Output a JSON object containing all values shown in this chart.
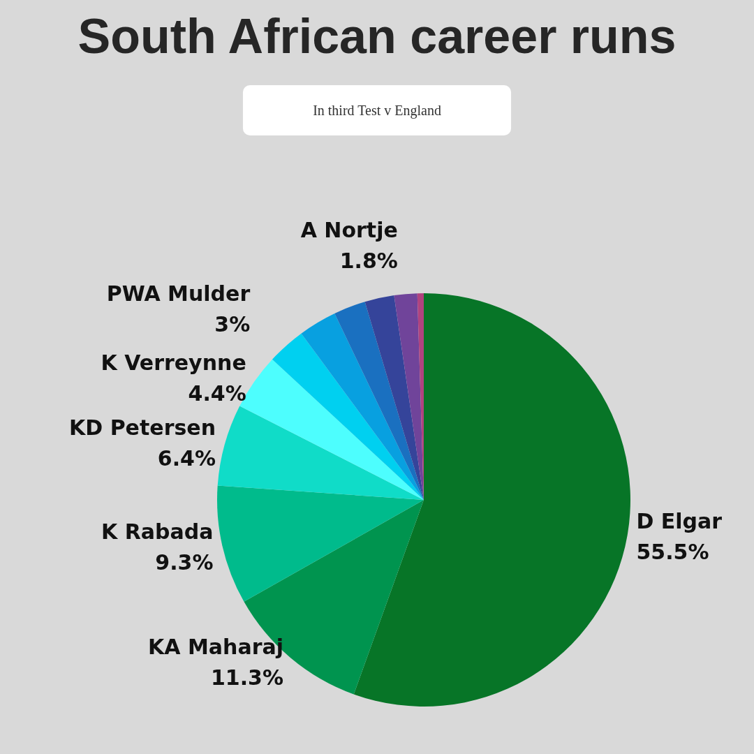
{
  "chart_data": {
    "type": "pie",
    "title": "South African career runs",
    "subtitle": "In third Test v England",
    "categories": [
      "D Elgar",
      "KA Maharaj",
      "K Rabada",
      "KD Petersen",
      "K Verreynne",
      "PWA Mulder",
      null,
      null,
      null,
      "A Nortje",
      null
    ],
    "values": [
      55.5,
      11.3,
      9.3,
      6.4,
      4.4,
      3,
      3.0,
      2.5,
      2.3,
      1.8,
      0.5
    ],
    "value_labels": [
      "55.5%",
      "11.3%",
      "9.3%",
      "6.4%",
      "4.4%",
      "3%",
      null,
      null,
      null,
      "1.8%",
      null
    ],
    "colors": [
      "#077527",
      "#00944f",
      "#00bb8c",
      "#10dcc8",
      "#4dfefe",
      "#00d0f0",
      "#08a0e0",
      "#1a70c0",
      "#35449a",
      "#70449a",
      "#b0437f"
    ],
    "legend": false
  }
}
